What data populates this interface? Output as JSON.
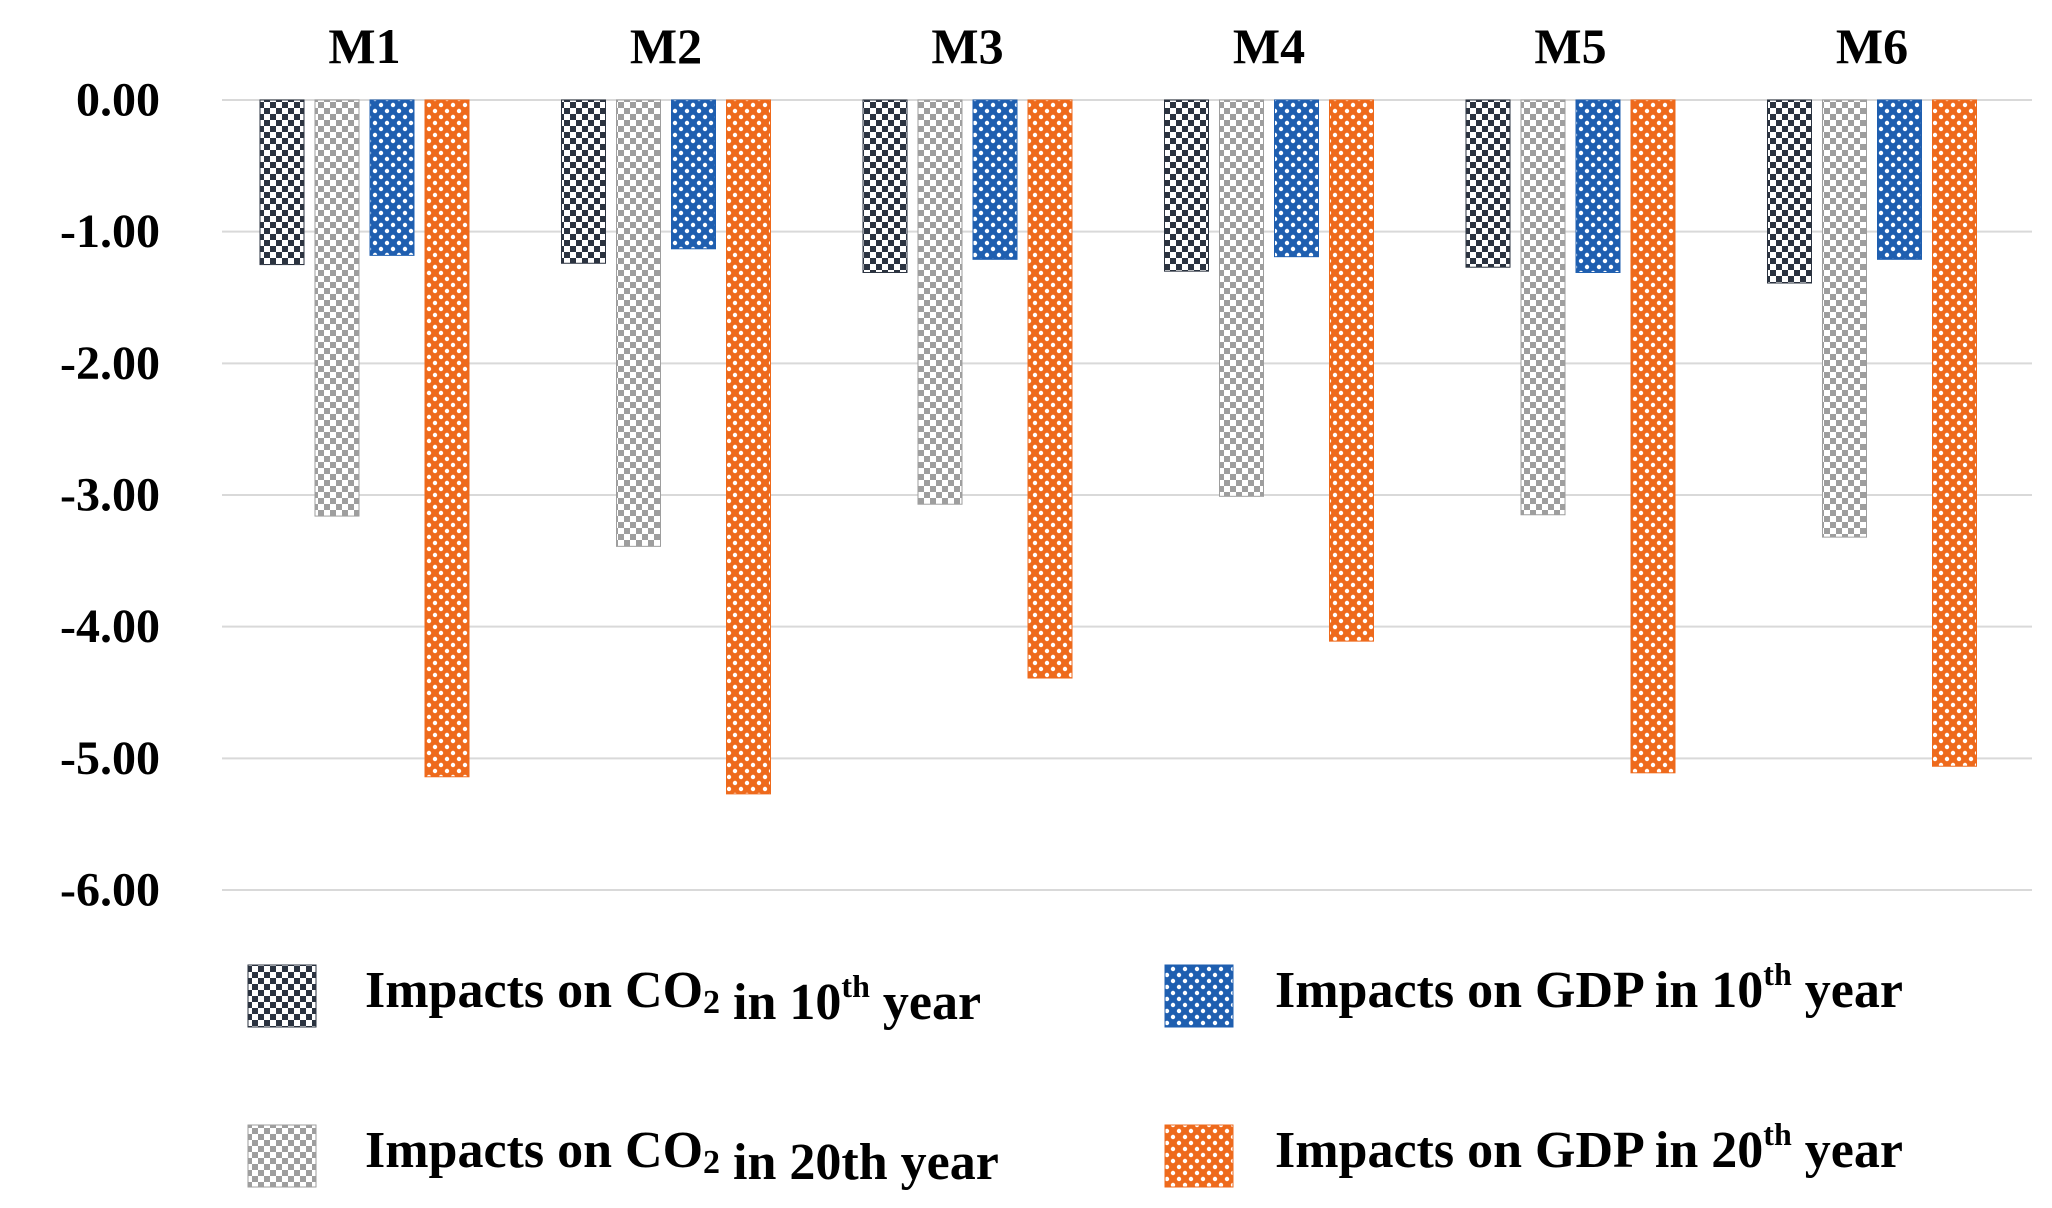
{
  "chart_data": {
    "type": "bar",
    "title": "",
    "xlabel": "",
    "ylabel": "",
    "categories": [
      "M1",
      "M2",
      "M3",
      "M4",
      "M5",
      "M6"
    ],
    "ylim": [
      -6,
      0
    ],
    "yticks": [
      0,
      -1,
      -2,
      -3,
      -4,
      -5,
      -6
    ],
    "ytick_labels": [
      "0.00",
      "-1.00",
      "-2.00",
      "-3.00",
      "-4.00",
      "-5.00",
      "-6.00"
    ],
    "category_axis_position": "top",
    "grid": true,
    "legend_position": "bottom",
    "series": [
      {
        "name": "Impacts on CO2 in 10th year",
        "legend_parts": {
          "pre": "Impacts on CO",
          "sub": "2",
          "mid": " in 10",
          "sup": "th",
          "post": " year"
        },
        "color": "#2b3340",
        "values": [
          -1.25,
          -1.24,
          -1.31,
          -1.3,
          -1.27,
          -1.39
        ]
      },
      {
        "name": "Impacts on CO2 in 20th year",
        "legend_parts": {
          "pre": "Impacts on CO",
          "sub": "2",
          "mid": " in 20th",
          "sup": "",
          "post": " year"
        },
        "color": "#9e9e9e",
        "values": [
          -3.16,
          -3.39,
          -3.07,
          -3.01,
          -3.15,
          -3.32
        ]
      },
      {
        "name": "Impacts on GDP in 10th year",
        "legend_parts": {
          "pre": "Impacts on GDP in 10",
          "sub": "",
          "mid": "",
          "sup": "th",
          "post": " year"
        },
        "color": "#1f5fb0",
        "values": [
          -1.18,
          -1.13,
          -1.21,
          -1.19,
          -1.31,
          -1.21
        ]
      },
      {
        "name": "Impacts on GDP in 20th year",
        "legend_parts": {
          "pre": "Impacts on GDP in 20",
          "sub": "",
          "mid": "",
          "sup": "th",
          "post": " year"
        },
        "color": "#ee6a1c",
        "values": [
          -5.14,
          -5.27,
          -4.39,
          -4.11,
          -5.11,
          -5.06
        ]
      }
    ]
  }
}
